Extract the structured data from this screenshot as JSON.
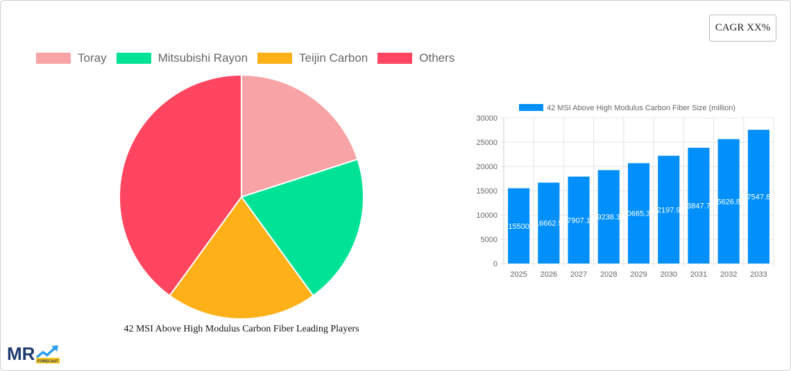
{
  "badge": {
    "cagr_label": "CAGR XX%"
  },
  "pie": {
    "title": "42 MSI Above High Modulus Carbon Fiber Leading Players",
    "legend": [
      {
        "label": "Toray",
        "color": "#f8a3a5"
      },
      {
        "label": "Mitsubishi Rayon",
        "color": "#00e396"
      },
      {
        "label": "Teijin Carbon",
        "color": "#feb019"
      },
      {
        "label": "Others",
        "color": "#ff4560"
      }
    ]
  },
  "bar": {
    "legend_label": "42 MSI Above High Modulus Carbon Fiber Size (million)",
    "color": "#008ffb"
  },
  "logo": {
    "text": "MR",
    "sub": "FORECAST"
  },
  "chart_data": [
    {
      "type": "pie",
      "title": "42 MSI Above High Modulus Carbon Fiber Leading Players",
      "categories": [
        "Toray",
        "Mitsubishi Rayon",
        "Teijin Carbon",
        "Others"
      ],
      "values": [
        20,
        20,
        20,
        40
      ],
      "colors": [
        "#f8a3a5",
        "#00e396",
        "#feb019",
        "#ff4560"
      ],
      "legend_position": "top"
    },
    {
      "type": "bar",
      "title": "",
      "categories": [
        "2025",
        "2026",
        "2027",
        "2028",
        "2029",
        "2030",
        "2031",
        "2032",
        "2033"
      ],
      "series": [
        {
          "name": "42 MSI Above High Modulus Carbon Fiber Size (million)",
          "values": [
            15500,
            16662.5,
            17907.19,
            19238.38,
            20665.31,
            22197.91,
            23847.76,
            25626.84,
            27547.81
          ]
        }
      ],
      "data_labels": [
        "15500",
        "16662.5",
        "17907.19",
        "19238.38",
        "20665.31",
        "22197.91",
        "23847.76",
        "25626.84",
        "27547.81"
      ],
      "yticks": [
        0,
        5000,
        10000,
        15000,
        20000,
        25000,
        30000
      ],
      "ylim": [
        0,
        30000
      ],
      "xlabel": "",
      "ylabel": "",
      "grid": true,
      "legend_position": "top"
    }
  ]
}
